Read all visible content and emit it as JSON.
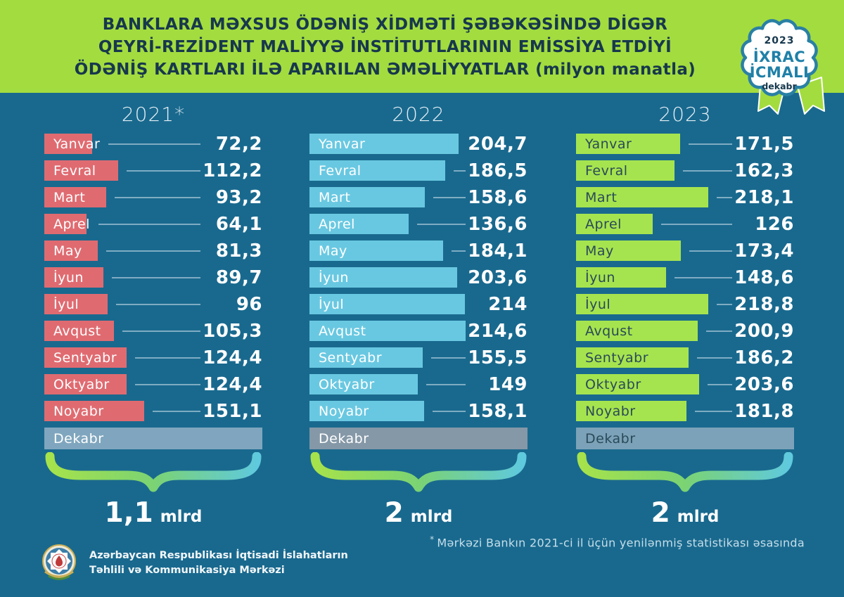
{
  "header": {
    "title_line1": "BANKLARA MƏXSUS ÖDƏNİŞ XİDMƏTİ ŞƏBƏKƏSİNDƏ DİGƏR",
    "title_line2": "QEYRİ-REZİDENT MALİYYƏ İNSTİTUTLARININ EMİSSİYA ETDİYİ",
    "title_line3": "ÖDƏNİŞ KARTLARI İLƏ APARILAN ƏMƏLİYYATLAR (milyon manatla)",
    "bg_color": "#A3DC3F",
    "text_color": "#17384D"
  },
  "badge": {
    "year": "2023",
    "line1": "İXRAC",
    "line2": "İCMALI",
    "month": "dekabr",
    "accent_color": "#1F80A8",
    "dark_color": "#17384D",
    "ribbon_color": "#A3DC3F"
  },
  "chart_data": {
    "type": "bar",
    "unit": "milyon manatla",
    "orientation": "horizontal",
    "grid": false,
    "legend": "none",
    "ylim": [
      0,
      230
    ],
    "categories": [
      "Yanvar",
      "Fevral",
      "Mart",
      "Aprel",
      "May",
      "İyun",
      "İyul",
      "Avqust",
      "Sentyabr",
      "Oktyabr",
      "Noyabr",
      "Dekabr"
    ],
    "series": [
      {
        "name": "2021*",
        "bar_color": "#DF6B71",
        "label_color": "#FFFFFF",
        "dekabr_bar_color": "#7FA6BE",
        "dekabr_label_color": "#FFFFFF",
        "scale_max": 330,
        "total_value": "1,1",
        "total_unit": "mlrd",
        "values": [
          72.2,
          112.2,
          93.2,
          64.1,
          81.3,
          89.7,
          96,
          105.3,
          124.4,
          124.4,
          151.1,
          null
        ]
      },
      {
        "name": "2022",
        "bar_color": "#69C8E1",
        "label_color": "#FFFFFF",
        "dekabr_bar_color": "#8598A7",
        "dekabr_label_color": "#FFFFFF",
        "scale_max": 300,
        "total_value": "2",
        "total_unit": "mlrd",
        "values": [
          204.7,
          186.5,
          158.6,
          136.6,
          184.1,
          203.6,
          214,
          214.6,
          155.5,
          149,
          158.1,
          null
        ]
      },
      {
        "name": "2023",
        "bar_color": "#A6E44F",
        "label_color": "#2A4A58",
        "dekabr_bar_color": "#7CA2B9",
        "dekabr_label_color": "#2A4A58",
        "scale_max": 360,
        "total_value": "2",
        "total_unit": "mlrd",
        "values": [
          171.5,
          162.3,
          218.1,
          126,
          173.4,
          148.6,
          218.8,
          200.9,
          186.2,
          203.6,
          181.8,
          null
        ]
      }
    ],
    "brace_gradient": [
      "#A6E24B",
      "#7BD373",
      "#5FC9DD"
    ]
  },
  "footnote": {
    "marker": "*",
    "text": "Mərkəzi Bankın 2021-ci il üçün yenilənmiş statistikası əsasında"
  },
  "footer": {
    "org_line1": "Azərbaycan Respublikası İqtisadi İslahatların",
    "org_line2": "Təhlili və Kommunikasiya Mərkəzi"
  },
  "colors": {
    "background": "#19698E",
    "value_text": "#FFFFFF",
    "connector_line": "#7FACC3",
    "dekabr_connector_line": "#C6DAE5"
  }
}
